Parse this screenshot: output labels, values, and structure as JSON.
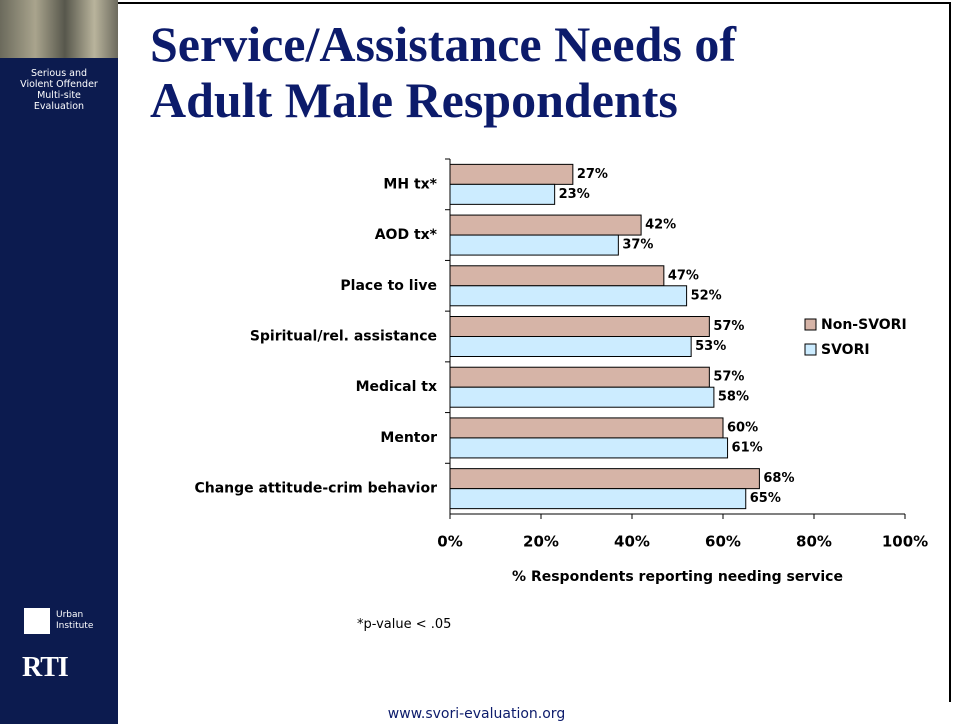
{
  "sidebar": {
    "project": "Serious and Violent Offender Multi-site Evaluation",
    "logo_urban": "Urban Institute",
    "logo_rti": "RTI"
  },
  "footnote": "*p-value < .05",
  "footer": "www.svori-evaluation.org",
  "chart_data": {
    "type": "hbar",
    "title": "Service/Assistance Needs of Adult Male Respondents",
    "x_label": "% Respondents reporting needing service",
    "categories": [
      "MH tx*",
      "AOD tx*",
      "Place to live",
      "Spiritual/rel. assistance",
      "Medical tx",
      "Mentor",
      "Change attitude-crim behavior"
    ],
    "series": [
      {
        "name": "Non-SVORI",
        "color": "#d6b4a7",
        "values": [
          27,
          42,
          47,
          57,
          57,
          60,
          68
        ],
        "value_labels": [
          "27%",
          "42%",
          "47%",
          "57%",
          "57%",
          "60%",
          "68%"
        ]
      },
      {
        "name": "SVORI",
        "color": "#ccecff",
        "values": [
          23,
          37,
          52,
          53,
          58,
          61,
          65
        ],
        "value_labels": [
          "23%",
          "37%",
          "52%",
          "53%",
          "58%",
          "61%",
          "65%"
        ]
      }
    ],
    "xlim": [
      0,
      100
    ],
    "xticks": [
      {
        "value": 0,
        "label": "0%"
      },
      {
        "value": 20,
        "label": "20%"
      },
      {
        "value": 40,
        "label": "40%"
      },
      {
        "value": 60,
        "label": "60%"
      },
      {
        "value": 80,
        "label": "80%"
      },
      {
        "value": 100,
        "label": "100%"
      }
    ],
    "legend": "right"
  }
}
